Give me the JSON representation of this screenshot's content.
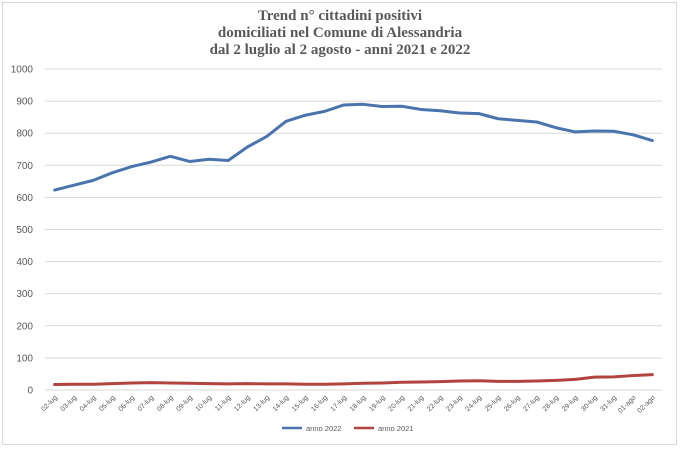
{
  "colors": {
    "series_2022": "#4a74ad",
    "series_2021": "#b24440",
    "grid": "#d9d9d9",
    "text": "#595959"
  },
  "chart_data": {
    "type": "line",
    "title": [
      "Trend n° cittadini positivi",
      "domiciliati nel Comune di Alessandria",
      "dal 2 luglio al 2 agosto - anni 2021 e 2022"
    ],
    "x": [
      "02-lug",
      "03-lug",
      "04-lug",
      "05-lug",
      "06-lug",
      "07-lug",
      "08-lug",
      "09-lug",
      "10-lug",
      "11-lug",
      "12-lug",
      "13-lug",
      "14-lug",
      "15-lug",
      "16-lug",
      "17-lug",
      "18-lug",
      "19-lug",
      "20-lug",
      "21-lug",
      "22-lug",
      "23-lug",
      "24-lug",
      "25-lug",
      "26-lug",
      "27-lug",
      "28-lug",
      "29-lug",
      "30-lug",
      "31-lug",
      "01-ago",
      "02-ago"
    ],
    "ylim": [
      0,
      1000
    ],
    "yticks": [
      0,
      100,
      200,
      300,
      400,
      500,
      600,
      700,
      800,
      900,
      1000
    ],
    "grid": true,
    "legend_position": "bottom",
    "series": [
      {
        "name": "anno 2022",
        "color": "#4a74ad",
        "values": [
          623,
          638,
          653,
          677,
          696,
          710,
          728,
          712,
          719,
          715,
          757,
          790,
          837,
          856,
          868,
          888,
          890,
          883,
          884,
          874,
          870,
          863,
          861,
          845,
          840,
          835,
          817,
          804,
          807,
          806,
          795,
          777
        ]
      },
      {
        "name": "anno 2021",
        "color": "#b24440",
        "values": [
          17,
          18,
          18,
          20,
          22,
          23,
          22,
          21,
          20,
          19,
          20,
          19,
          19,
          18,
          18,
          19,
          21,
          22,
          24,
          25,
          26,
          28,
          29,
          27,
          27,
          28,
          30,
          33,
          40,
          41,
          45,
          48
        ]
      }
    ]
  }
}
